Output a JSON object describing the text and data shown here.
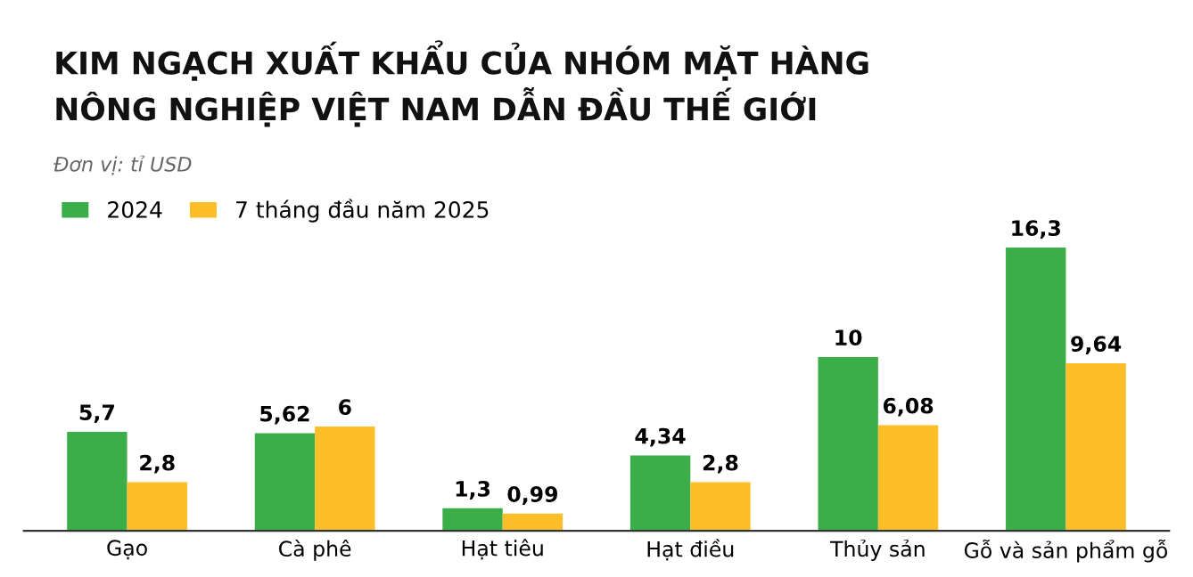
{
  "chart_data": {
    "type": "bar",
    "title": "KIM NGẠCH XUẤT KHẨU CỦA NHÓM MẶT HÀNG\nNÔNG NGHIỆP VIỆT NAM DẪN ĐẦU THẾ GIỚI",
    "annotations": [
      "Đơn vị: tỉ USD"
    ],
    "categories": [
      "Gạo",
      "Cà phê",
      "Hạt tiêu",
      "Hạt điều",
      "Thủy sản",
      "Gỗ và sản phẩm gỗ"
    ],
    "series": [
      {
        "name": "2024",
        "color": "#3cae49",
        "values": [
          5.7,
          5.62,
          1.3,
          4.34,
          10,
          16.3
        ],
        "value_labels": [
          "5,7",
          "5,62",
          "1,3",
          "4,34",
          "10",
          "16,3"
        ]
      },
      {
        "name": "7 tháng đầu năm 2025",
        "color": "#fcbf2a",
        "values": [
          2.8,
          6,
          0.99,
          2.8,
          6.08,
          9.64
        ],
        "value_labels": [
          "2,8",
          "6",
          "0,99",
          "2,8",
          "6,08",
          "9,64"
        ]
      }
    ],
    "legend": "top left",
    "grid": false
  }
}
